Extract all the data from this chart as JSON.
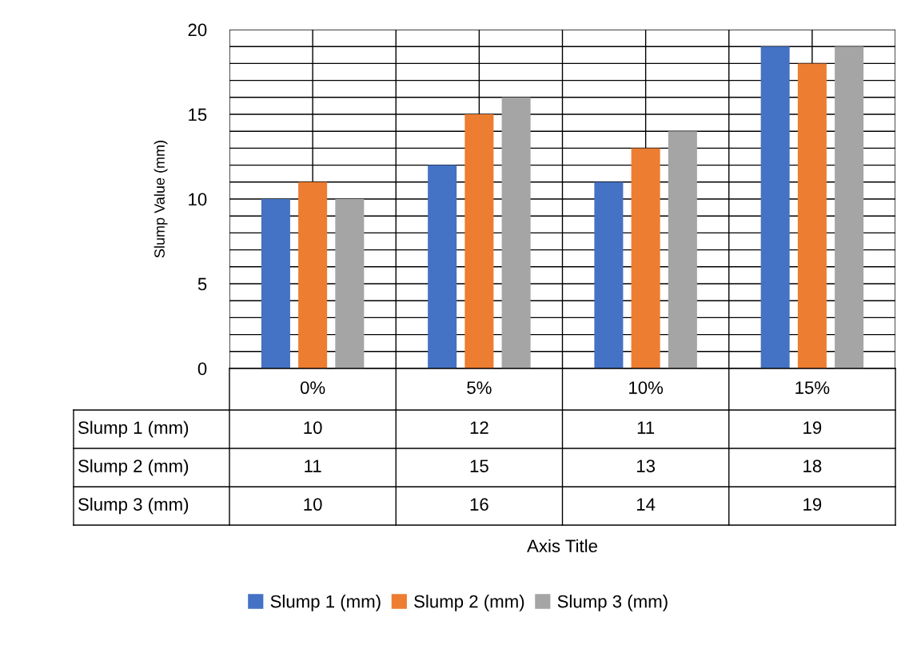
{
  "chart_data": {
    "type": "bar",
    "annotations": [
      "Axis Title"
    ],
    "ylabel": "Slump Value (mm)",
    "categories": [
      "0%",
      "5%",
      "10%",
      "15%"
    ],
    "series": [
      {
        "name": "Slump 1 (mm)",
        "color": "#4472c4",
        "values": [
          10,
          12,
          11,
          19
        ]
      },
      {
        "name": "Slump 2 (mm)",
        "color": "#ed7d31",
        "values": [
          11,
          15,
          13,
          18
        ]
      },
      {
        "name": "Slump 3 (mm)",
        "color": "#a5a5a5",
        "values": [
          10,
          16,
          14,
          19
        ]
      }
    ],
    "ylim": [
      0,
      20
    ],
    "yticks": [
      0,
      {
        "value": 1,
        "label": null
      },
      {
        "value": 2,
        "label": null
      },
      {
        "value": 3,
        "label": null
      },
      {
        "value": 4,
        "label": null
      },
      5,
      {
        "value": 6,
        "label": null
      },
      {
        "value": 7,
        "label": null
      },
      {
        "value": 8,
        "label": null
      },
      {
        "value": 9,
        "label": null
      },
      10,
      {
        "value": 11,
        "label": null
      },
      {
        "value": 12,
        "label": null
      },
      {
        "value": 13,
        "label": null
      },
      {
        "value": 14,
        "label": null
      },
      15,
      {
        "value": 16,
        "label": null
      },
      {
        "value": 17,
        "label": null
      },
      {
        "value": 18,
        "label": null
      },
      {
        "value": 19,
        "label": null
      },
      20
    ],
    "grid": true,
    "data_labels": true,
    "legend": "bottom"
  }
}
